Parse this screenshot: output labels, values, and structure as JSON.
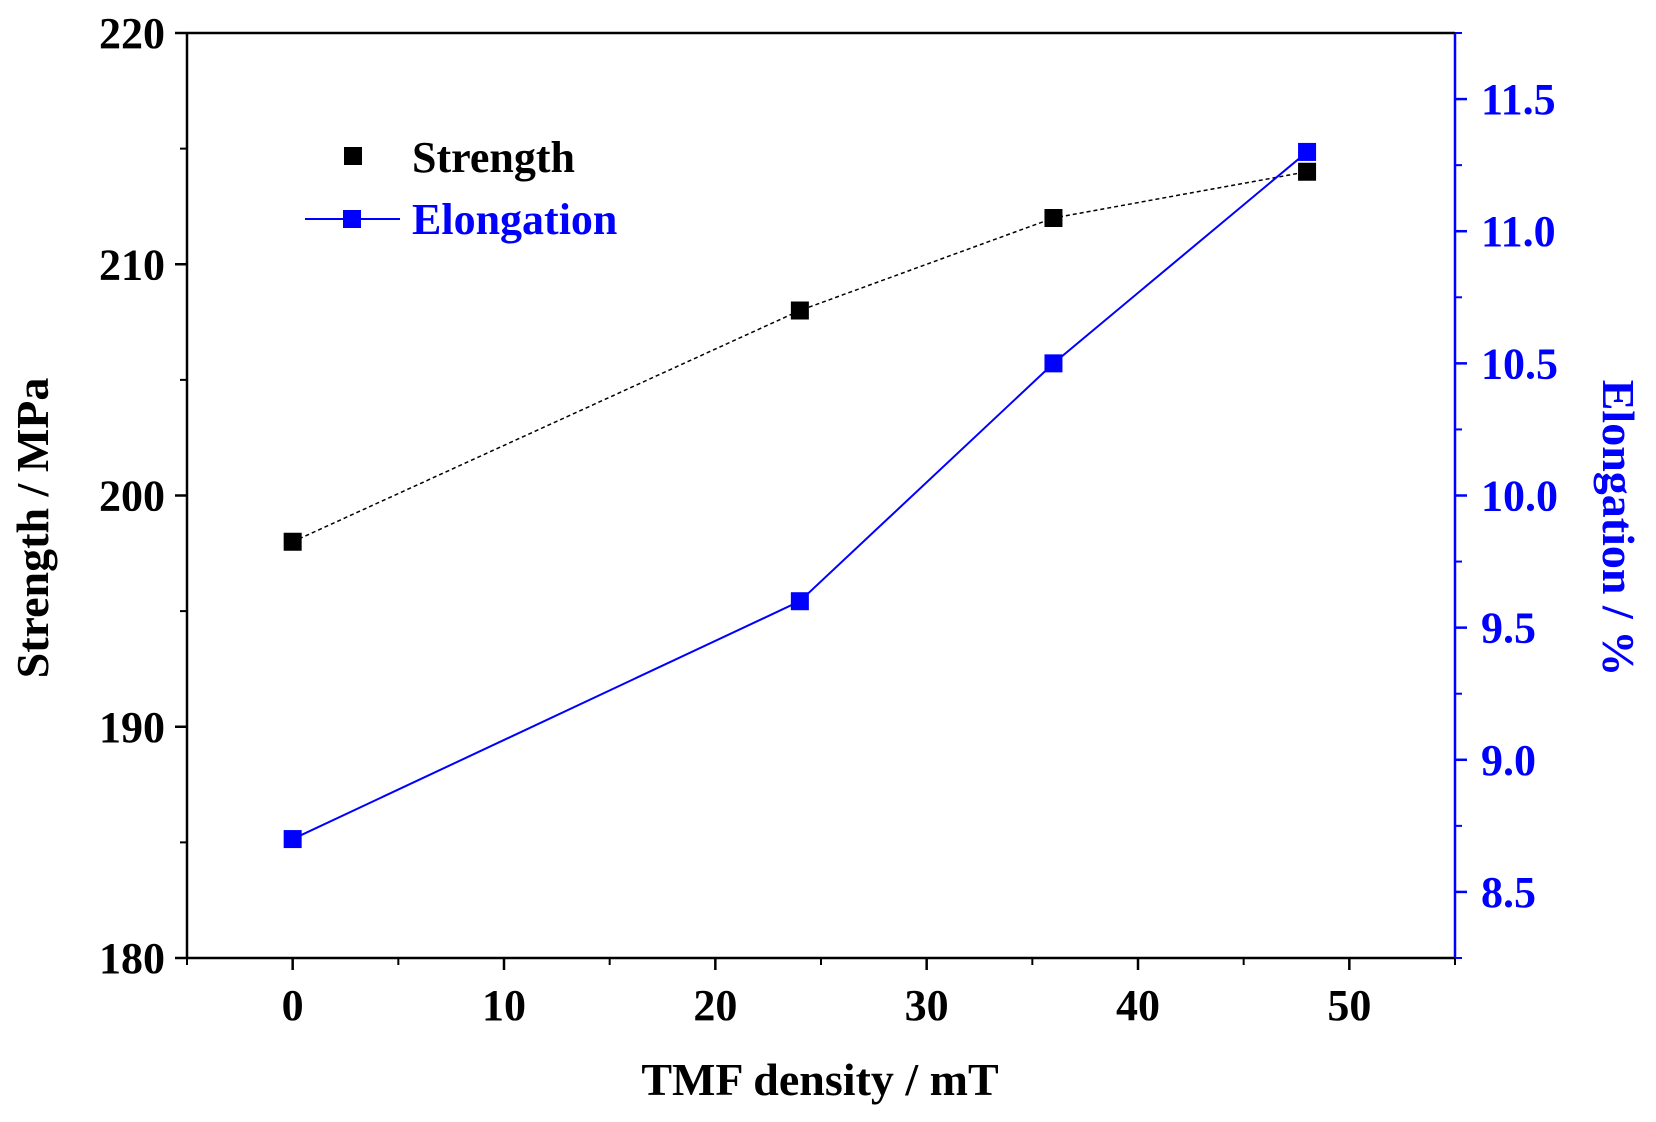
{
  "chart_data": {
    "type": "line",
    "title": "",
    "xlabel": "TMF density / mT",
    "ylabel_left": "Strength / MPa",
    "ylabel_right": "Elongation / %",
    "xlim": [
      -5,
      55
    ],
    "ylim_left": [
      180,
      220
    ],
    "ylim_right": [
      8.25,
      11.75
    ],
    "x_ticks": [
      0,
      10,
      20,
      30,
      40,
      50
    ],
    "y_left_ticks": [
      180,
      190,
      200,
      210,
      220
    ],
    "y_right_ticks": [
      8.5,
      9.0,
      9.5,
      10.0,
      10.5,
      11.0,
      11.5
    ],
    "x_tick_labels": [
      "0",
      "10",
      "20",
      "30",
      "40",
      "50"
    ],
    "y_left_tick_labels": [
      "180",
      "190",
      "200",
      "210",
      "220"
    ],
    "y_right_tick_labels": [
      "8.5",
      "9.0",
      "9.5",
      "10.0",
      "10.5",
      "11.0",
      "11.5"
    ],
    "grid": false,
    "legend_position": "top-left",
    "series": [
      {
        "name": "Strength",
        "axis": "left",
        "color": "#000000",
        "line_style": "dashed",
        "x": [
          0,
          24,
          36,
          48
        ],
        "values": [
          198,
          208,
          212,
          214
        ]
      },
      {
        "name": "Elongation",
        "axis": "right",
        "color": "#0000ff",
        "line_style": "solid",
        "x": [
          0,
          24,
          36,
          48
        ],
        "values": [
          8.7,
          9.6,
          10.5,
          11.3
        ]
      }
    ]
  }
}
